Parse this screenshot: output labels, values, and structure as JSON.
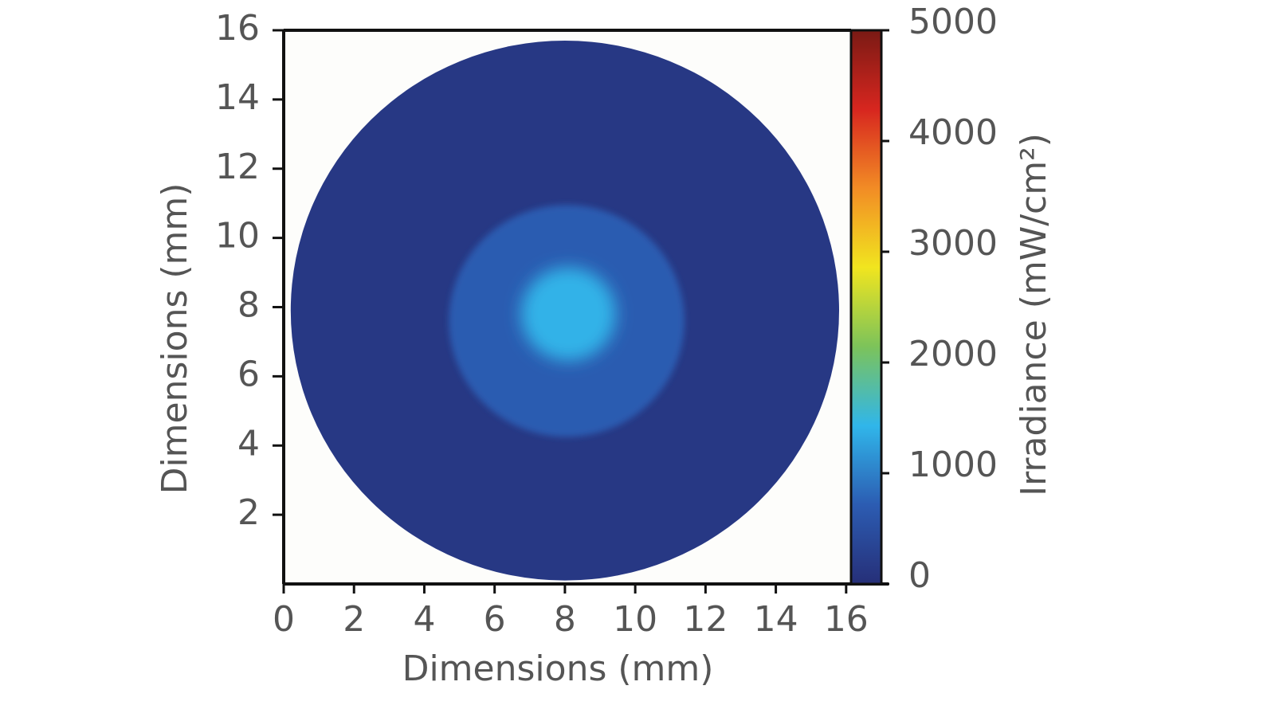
{
  "chart_data": {
    "type": "heatmap",
    "xlabel": "Dimensions (mm)",
    "ylabel": "Dimensions (mm)",
    "colorbar_label": "Irradiance (mW/cm²)",
    "xlim": [
      0,
      16.14
    ],
    "xticks": [
      0,
      2,
      4,
      6,
      8,
      10,
      12,
      14,
      16
    ],
    "ylim": [
      0,
      16
    ],
    "yticks": [
      2,
      4,
      6,
      8,
      10,
      12,
      14,
      16
    ],
    "clim": [
      0,
      5000
    ],
    "cticks": [
      0,
      1000,
      2000,
      3000,
      4000,
      5000
    ],
    "colormap": [
      "#262f78",
      "#2c5cb2",
      "#30b6ea",
      "#7cc35a",
      "#f1e51f",
      "#f28c25",
      "#d7261f",
      "#7a1a14"
    ],
    "background": "#fdfdfb",
    "spots": [
      {
        "x": 8.0,
        "y": 7.9,
        "r": 7.8,
        "value": 150
      },
      {
        "x": 8.05,
        "y": 7.6,
        "r": 3.35,
        "value": 700
      },
      {
        "x": 8.1,
        "y": 7.8,
        "r": 1.35,
        "value": 1400
      }
    ]
  }
}
